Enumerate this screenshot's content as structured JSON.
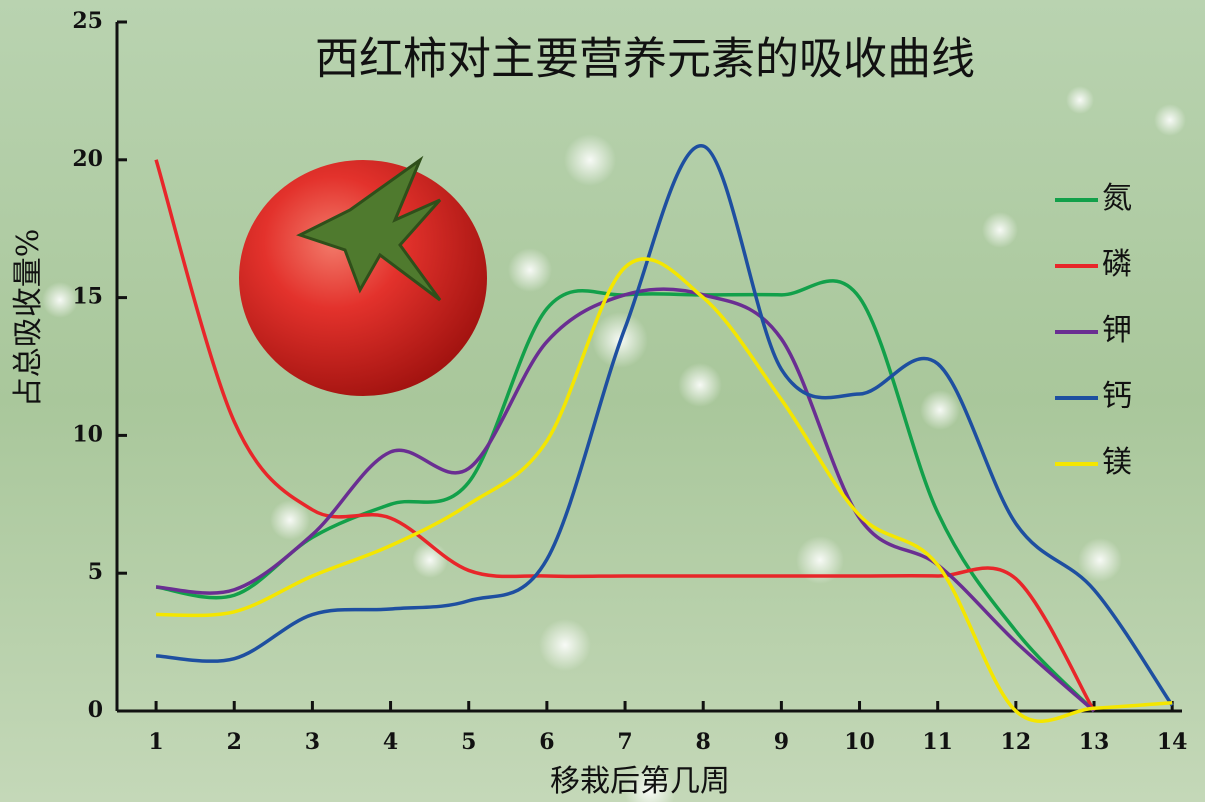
{
  "chart_data": {
    "type": "line",
    "title": "西红柿对主要营养元素的吸收曲线",
    "x_label": "移栽后第几周",
    "y_label": "占总吸收量%",
    "x": [
      1,
      2,
      3,
      4,
      5,
      6,
      7,
      8,
      9,
      10,
      11,
      12,
      13,
      14
    ],
    "xlim": [
      0.5,
      14.1
    ],
    "xticks": [
      1,
      2,
      3,
      4,
      5,
      6,
      7,
      8,
      9,
      10,
      11,
      12,
      13,
      14
    ],
    "ylim": [
      0,
      25
    ],
    "yticks": [
      0,
      5,
      10,
      15,
      20,
      25
    ],
    "legend": "right",
    "series": [
      {
        "name": "氮",
        "color": "#12a04a",
        "values": [
          4.5,
          4.2,
          6.3,
          7.5,
          8.3,
          14.6,
          15.1,
          15.1,
          15.1,
          15.0,
          7.2,
          2.9,
          0,
          null
        ]
      },
      {
        "name": "磷",
        "color": "#e8262a",
        "values": [
          20,
          10.5,
          7.3,
          7.0,
          5.1,
          4.9,
          4.9,
          4.9,
          4.9,
          4.9,
          4.9,
          4.8,
          0,
          null
        ]
      },
      {
        "name": "钾",
        "color": "#6a2e92",
        "values": [
          4.5,
          4.4,
          6.4,
          9.4,
          8.8,
          13.4,
          15.1,
          15.1,
          13.5,
          7.0,
          5.3,
          2.5,
          0,
          null
        ]
      },
      {
        "name": "钙",
        "color": "#1e4fa0",
        "values": [
          2.0,
          1.9,
          3.5,
          3.7,
          4.0,
          5.5,
          13.9,
          20.5,
          12.4,
          11.5,
          12.6,
          6.8,
          4.4,
          0.2
        ]
      },
      {
        "name": "镁",
        "color": "#f4e600",
        "values": [
          3.5,
          3.6,
          4.9,
          6.0,
          7.5,
          9.8,
          16.1,
          15.0,
          11.3,
          7.1,
          5.3,
          0,
          0.1,
          0.3
        ]
      }
    ]
  }
}
